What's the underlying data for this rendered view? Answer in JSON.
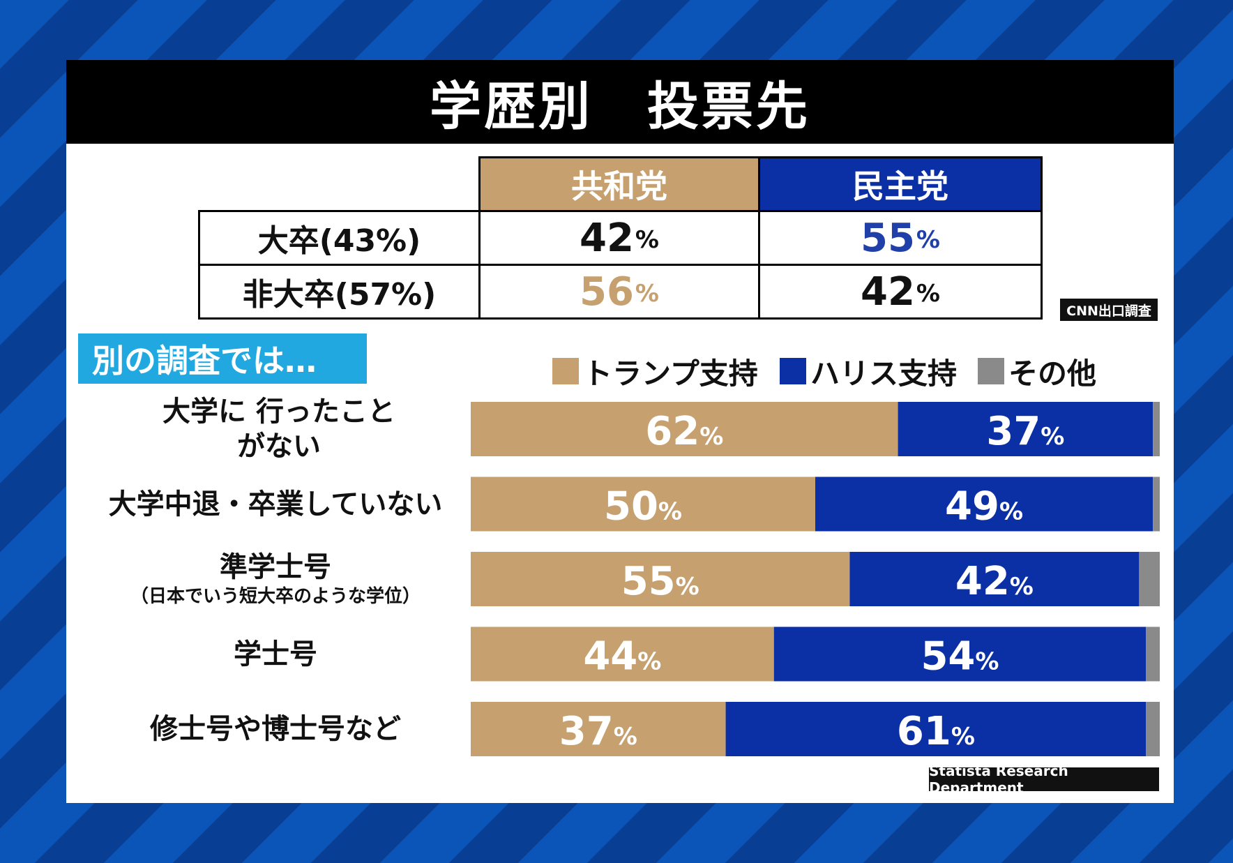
{
  "title": "学歴別　投票先",
  "exit_poll": {
    "headers": [
      "共和党",
      "民主党"
    ],
    "rows": [
      {
        "label": "大卒(43%)",
        "rep": "42",
        "dem": "55"
      },
      {
        "label": "非大卒(57%)",
        "rep": "56",
        "dem": "42"
      }
    ],
    "pct": "%",
    "source": "CNN出口調査"
  },
  "survey_tag": "別の調査では…",
  "legend": [
    "トランプ支持",
    "ハリス支持",
    "その他"
  ],
  "colors": {
    "trump": "#c6a06f",
    "harris": "#0b2fa4",
    "other": "#8a8a8a",
    "highlight_rep": "#c6a06f",
    "highlight_dem": "#213fa8"
  },
  "chart_data": {
    "type": "bar",
    "orientation": "horizontal-stacked",
    "categories": [
      {
        "label": "大学に 行ったことがない",
        "sub": ""
      },
      {
        "label": "大学中退・卒業していない",
        "sub": ""
      },
      {
        "label": "準学士号",
        "sub": "（日本でいう短大卒のような学位）"
      },
      {
        "label": "学士号",
        "sub": ""
      },
      {
        "label": "修士号や博士号など",
        "sub": ""
      }
    ],
    "series": [
      {
        "name": "トランプ支持",
        "values": [
          62,
          50,
          55,
          44,
          37
        ]
      },
      {
        "name": "ハリス支持",
        "values": [
          37,
          49,
          42,
          54,
          61
        ]
      },
      {
        "name": "その他",
        "values": [
          1,
          1,
          3,
          2,
          2
        ]
      }
    ],
    "unit": "%",
    "xlim": [
      0,
      100
    ],
    "source": "Statista Research Department"
  }
}
